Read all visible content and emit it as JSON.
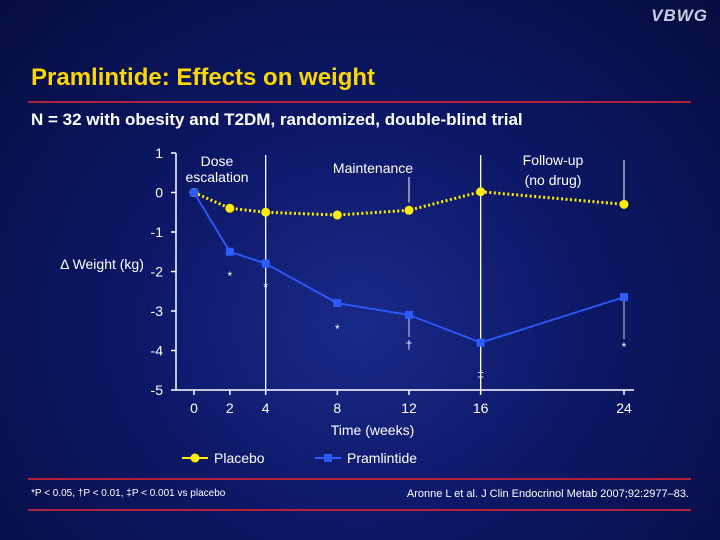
{
  "logo": "VBWG",
  "title": "Pramlintide: Effects on weight",
  "subtitle": "N = 32 with obesity and T2DM, randomized, double-blind trial",
  "footnote": "*P < 0.05, †P < 0.01, ‡P < 0.001 vs placebo",
  "citation": "Aronne L et al. J Clin Endocrinol Metab 2007;92:2977–83.",
  "colors": {
    "title": "#ffd700",
    "placebo": "#ffee00",
    "pramlintide": "#2b5cff",
    "rule": "#b3203a"
  },
  "chart_data": {
    "type": "line",
    "xlabel": "Time (weeks)",
    "ylabel": "Δ Weight (kg)",
    "xlim": [
      0,
      24
    ],
    "ylim": [
      -5,
      1
    ],
    "x_ticks": [
      0,
      2,
      4,
      8,
      12,
      16,
      24
    ],
    "y_ticks": [
      1,
      0,
      -1,
      -2,
      -3,
      -4,
      -5
    ],
    "phases": [
      {
        "label_lines": [
          "Dose",
          "escalation"
        ],
        "start": 0,
        "end": 4
      },
      {
        "label_lines": [
          "Maintenance"
        ],
        "start": 4,
        "end": 16
      },
      {
        "label_lines": [
          "Follow-up",
          "(no drug)"
        ],
        "start": 16,
        "end": 24
      }
    ],
    "series": [
      {
        "name": "Placebo",
        "color": "#ffee00",
        "style": "dotted",
        "marker": "circle",
        "x": [
          0,
          2,
          4,
          8,
          12,
          16,
          24
        ],
        "values": [
          0,
          -0.4,
          -0.5,
          -0.57,
          -0.45,
          0.02,
          -0.3
        ]
      },
      {
        "name": "Pramlintide",
        "color": "#2b5cff",
        "style": "solid",
        "marker": "square",
        "x": [
          0,
          2,
          4,
          8,
          12,
          16,
          24
        ],
        "values": [
          0,
          -1.5,
          -1.8,
          -2.8,
          -3.1,
          -3.8,
          -2.65
        ],
        "significance": [
          "",
          "*",
          "*",
          "*",
          "†",
          "‡",
          "*"
        ]
      }
    ],
    "legend_position": "bottom"
  }
}
